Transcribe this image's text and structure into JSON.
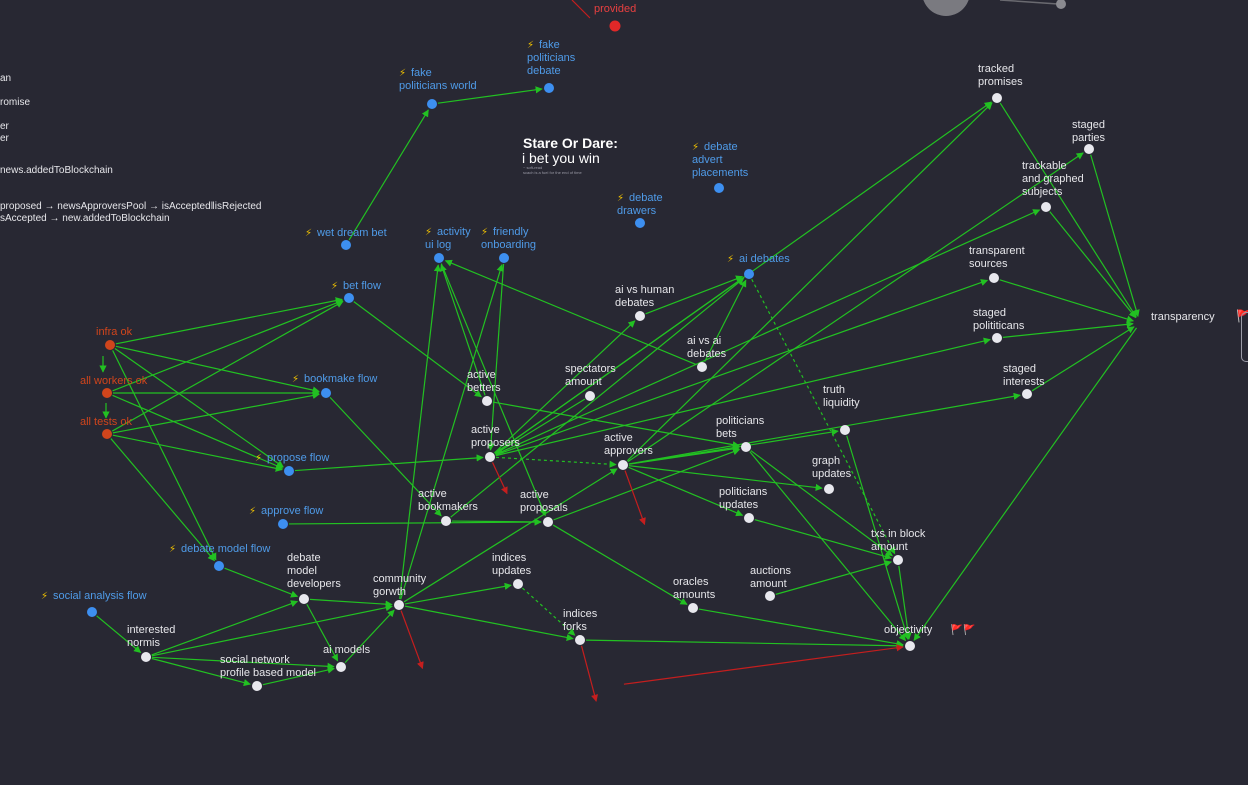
{
  "colors": {
    "background": "#282833",
    "edge": "#22c122",
    "edge_red": "#c51e1e",
    "node_white": "#e8e8ee",
    "node_blue": "#3d8ff0",
    "node_orange": "#d0451c",
    "node_red": "#e02828",
    "text_white": "#e6e6ea",
    "text_blue": "#4f9be8",
    "text_orange": "#d0451c",
    "text_red": "#e84040",
    "bolt": "#f2c200"
  },
  "sidebar_lines": [
    "an",
    "romise",
    "er",
    "er",
    "news.addedToBlockchain",
    "proposed → newsApproversPool → isAccepted‖isRejected",
    "sAccepted → new.addedToBlockchain"
  ],
  "title": {
    "main": "Stare Or Dare:",
    "subtitle": "i bet you win",
    "tiny_1": "~ soft-read",
    "tiny_2": "scach is a fuel for the end of time"
  },
  "nodes": [
    {
      "id": "provided",
      "label": "provided",
      "kind": "red"
    },
    {
      "id": "fake_politicians_debate",
      "label": "fake\npoliticians\ndebate",
      "kind": "blue",
      "bolt": true
    },
    {
      "id": "fake_politicians_world",
      "label": "fake\npoliticians world",
      "kind": "blue",
      "bolt": true
    },
    {
      "id": "debate_advert",
      "label": "debate\nadvert\nplacements",
      "kind": "blue",
      "bolt": true
    },
    {
      "id": "debate_drawers",
      "label": "debate\ndrawers",
      "kind": "blue",
      "bolt": true
    },
    {
      "id": "wet_dream_bet",
      "label": "wet dream bet",
      "kind": "blue",
      "bolt": true
    },
    {
      "id": "activity_ui_log",
      "label": "activity\nui log",
      "kind": "blue",
      "bolt": true
    },
    {
      "id": "friendly_onboarding",
      "label": "friendly\nonboarding",
      "kind": "blue",
      "bolt": true
    },
    {
      "id": "ai_debates",
      "label": "ai debates",
      "kind": "blue",
      "bolt": true
    },
    {
      "id": "bet_flow",
      "label": "bet flow",
      "kind": "blue",
      "bolt": true
    },
    {
      "id": "bookmake_flow",
      "label": "bookmake flow",
      "kind": "blue",
      "bolt": true
    },
    {
      "id": "propose_flow",
      "label": "propose flow",
      "kind": "blue",
      "bolt": true
    },
    {
      "id": "approve_flow",
      "label": "approve flow",
      "kind": "blue",
      "bolt": true
    },
    {
      "id": "debate_model_flow",
      "label": "debate model flow",
      "kind": "blue",
      "bolt": true
    },
    {
      "id": "social_analysis_flow",
      "label": "social analysis flow",
      "kind": "blue",
      "bolt": true
    },
    {
      "id": "infra_ok",
      "label": "infra ok",
      "kind": "orange"
    },
    {
      "id": "all_workers_ok",
      "label": "all workers ok",
      "kind": "orange"
    },
    {
      "id": "all_tests_ok",
      "label": "all tests ok",
      "kind": "orange"
    },
    {
      "id": "tracked_promises",
      "label": "tracked\npromises",
      "kind": "white"
    },
    {
      "id": "staged_parties",
      "label": "staged\nparties",
      "kind": "white"
    },
    {
      "id": "trackable_subjects",
      "label": "trackable\nand graphed\nsubjects",
      "kind": "white"
    },
    {
      "id": "transparent_sources",
      "label": "transparent\nsources",
      "kind": "white"
    },
    {
      "id": "staged_polititicans",
      "label": "staged\npolititicans",
      "kind": "white"
    },
    {
      "id": "staged_interests",
      "label": "staged\ninterests",
      "kind": "white"
    },
    {
      "id": "transparency",
      "label": "transparency",
      "kind": "hub",
      "flags": "🚩"
    },
    {
      "id": "ai_vs_human",
      "label": "ai vs human\ndebates",
      "kind": "white"
    },
    {
      "id": "ai_vs_ai",
      "label": "ai vs ai\ndebates",
      "kind": "white"
    },
    {
      "id": "spectators_amount",
      "label": "spectators\namount",
      "kind": "white"
    },
    {
      "id": "active_betters",
      "label": "active\nbetters",
      "kind": "white"
    },
    {
      "id": "active_proposers",
      "label": "active\nproposers",
      "kind": "white"
    },
    {
      "id": "active_approvers",
      "label": "active\napprovers",
      "kind": "white"
    },
    {
      "id": "politicians_bets",
      "label": "politicians\nbets",
      "kind": "white"
    },
    {
      "id": "truth_liquidity",
      "label": "truth\nliquidity",
      "kind": "white"
    },
    {
      "id": "graph_updates",
      "label": "graph\nupdates",
      "kind": "white"
    },
    {
      "id": "active_bookmakers",
      "label": "active\nbookmakers",
      "kind": "white"
    },
    {
      "id": "active_proposals",
      "label": "active\nproposals",
      "kind": "white"
    },
    {
      "id": "politicians_updates",
      "label": "politicians\nupdates",
      "kind": "white"
    },
    {
      "id": "txs_in_block",
      "label": "txs in block\namount",
      "kind": "white"
    },
    {
      "id": "debate_model_developers",
      "label": "debate\nmodel\ndevelopers",
      "kind": "white"
    },
    {
      "id": "community_gorwth",
      "label": "community\ngorwth",
      "kind": "white"
    },
    {
      "id": "indices_updates",
      "label": "indices\nupdates",
      "kind": "white"
    },
    {
      "id": "oracles_amounts",
      "label": "oracles\namounts",
      "kind": "white"
    },
    {
      "id": "auctions_amount",
      "label": "auctions\namount",
      "kind": "white"
    },
    {
      "id": "indices_forks",
      "label": "indices\nforks",
      "kind": "white"
    },
    {
      "id": "objectivity",
      "label": "objectivity",
      "kind": "hub_small",
      "flags": "🚩🚩"
    },
    {
      "id": "interested_normis",
      "label": "interested\nnormis",
      "kind": "white"
    },
    {
      "id": "social_network_model",
      "label": "social network\nprofile based model",
      "kind": "white"
    },
    {
      "id": "ai_models",
      "label": "ai models",
      "kind": "white"
    }
  ],
  "edges": [
    [
      "fake_politicians_world",
      "fake_politicians_debate"
    ],
    [
      "wet_dream_bet",
      "fake_politicians_world"
    ],
    [
      "infra_ok",
      "bet_flow"
    ],
    [
      "infra_ok",
      "bookmake_flow"
    ],
    [
      "infra_ok",
      "propose_flow"
    ],
    [
      "infra_ok",
      "debate_model_flow"
    ],
    [
      "all_workers_ok",
      "bet_flow"
    ],
    [
      "all_workers_ok",
      "bookmake_flow"
    ],
    [
      "all_workers_ok",
      "propose_flow"
    ],
    [
      "all_tests_ok",
      "bet_flow"
    ],
    [
      "all_tests_ok",
      "bookmake_flow"
    ],
    [
      "all_tests_ok",
      "propose_flow"
    ],
    [
      "all_tests_ok",
      "debate_model_flow"
    ],
    [
      "bet_flow",
      "active_betters"
    ],
    [
      "bookmake_flow",
      "active_bookmakers"
    ],
    [
      "propose_flow",
      "active_proposers"
    ],
    [
      "approve_flow",
      "active_proposals"
    ],
    [
      "debate_model_flow",
      "debate_model_developers"
    ],
    [
      "social_analysis_flow",
      "interested_normis"
    ],
    [
      "interested_normis",
      "social_network_model"
    ],
    [
      "interested_normis",
      "ai_models"
    ],
    [
      "interested_normis",
      "community_gorwth"
    ],
    [
      "interested_normis",
      "debate_model_developers"
    ],
    [
      "social_network_model",
      "ai_models"
    ],
    [
      "debate_model_developers",
      "community_gorwth"
    ],
    [
      "debate_model_developers",
      "ai_models"
    ],
    [
      "ai_models",
      "community_gorwth"
    ],
    [
      "community_gorwth",
      "indices_updates"
    ],
    [
      "community_gorwth",
      "indices_forks"
    ],
    [
      "community_gorwth",
      "activity_ui_log"
    ],
    [
      "community_gorwth",
      "friendly_onboarding"
    ],
    [
      "community_gorwth",
      "active_approvers"
    ],
    [
      "ai_vs_human",
      "ai_debates"
    ],
    [
      "ai_vs_ai",
      "ai_debates"
    ],
    [
      "ai_vs_ai",
      "activity_ui_log"
    ],
    [
      "active_betters",
      "activity_ui_log"
    ],
    [
      "active_betters",
      "politicians_bets"
    ],
    [
      "active_proposers",
      "ai_debates"
    ],
    [
      "active_proposers",
      "ai_vs_human"
    ],
    [
      "active_proposers",
      "tracked_promises"
    ],
    [
      "active_proposers",
      "trackable_subjects"
    ],
    [
      "active_proposers",
      "transparent_sources"
    ],
    [
      "active_proposers",
      "staged_polititicans"
    ],
    [
      "active_approvers",
      "tracked_promises"
    ],
    [
      "active_approvers",
      "staged_parties"
    ],
    [
      "active_approvers",
      "staged_interests"
    ],
    [
      "active_approvers",
      "truth_liquidity"
    ],
    [
      "active_approvers",
      "graph_updates"
    ],
    [
      "active_approvers",
      "politicians_updates"
    ],
    [
      "active_approvers",
      "politicians_bets"
    ],
    [
      "active_bookmakers",
      "ai_debates"
    ],
    [
      "active_bookmakers",
      "active_proposals"
    ],
    [
      "active_proposals",
      "politicians_bets"
    ],
    [
      "active_proposals",
      "oracles_amounts"
    ],
    [
      "spectators_amount",
      "active_proposers"
    ],
    [
      "politicians_bets",
      "txs_in_block"
    ],
    [
      "politicians_bets",
      "objectivity"
    ],
    [
      "truth_liquidity",
      "objectivity"
    ],
    [
      "politicians_updates",
      "txs_in_block"
    ],
    [
      "auctions_amount",
      "txs_in_block"
    ],
    [
      "oracles_amounts",
      "objectivity"
    ],
    [
      "indices_forks",
      "objectivity"
    ],
    [
      "txs_in_block",
      "objectivity"
    ],
    [
      "tracked_promises",
      "transparency"
    ],
    [
      "staged_parties",
      "transparency"
    ],
    [
      "trackable_subjects",
      "transparency"
    ],
    [
      "transparent_sources",
      "transparency"
    ],
    [
      "staged_polititicans",
      "transparency"
    ],
    [
      "staged_interests",
      "transparency"
    ],
    [
      "transparency",
      "objectivity"
    ],
    [
      "activity_ui_log",
      "active_proposals"
    ],
    [
      "friendly_onboarding",
      "active_proposers"
    ]
  ],
  "dashed_edges": [
    [
      "active_proposers",
      "active_approvers"
    ],
    [
      "indices_updates",
      "indices_forks"
    ],
    [
      "ai_debates",
      "txs_in_block"
    ]
  ],
  "red_edges": [
    [
      "active_proposers",
      "red_a"
    ],
    [
      "active_approvers",
      "red_b"
    ],
    [
      "community_gorwth",
      "red_c"
    ],
    [
      "indices_forks",
      "red_d"
    ],
    [
      "red_e",
      "objectivity"
    ]
  ]
}
